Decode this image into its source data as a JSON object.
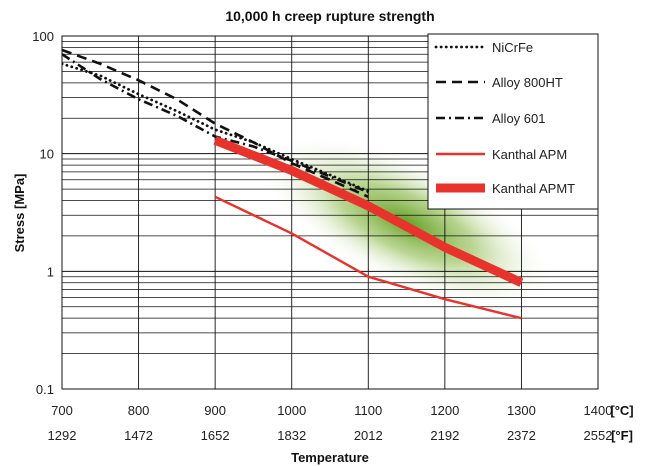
{
  "chart_data": {
    "type": "line",
    "title": "10,000 h creep rupture strength",
    "xlabel": "Temperature",
    "ylabel": "Stress [MPa]",
    "x_unit_primary": "[°C]",
    "x_unit_secondary": "[°F]",
    "x_scale": "linear",
    "y_scale": "log",
    "xlim": [
      700,
      1400
    ],
    "ylim": [
      0.1,
      100
    ],
    "x_ticks": [
      "700",
      "800",
      "900",
      "1000",
      "1100",
      "1200",
      "1300",
      "1400"
    ],
    "x_ticks_f": [
      "1292",
      "1472",
      "1652",
      "1832",
      "2012",
      "2192",
      "2372",
      "2552"
    ],
    "y_ticks": [
      "0.1",
      "1",
      "10",
      "100"
    ],
    "grid": true,
    "legend_position": "top-right",
    "colors": {
      "kanthal": "#e8332c",
      "alloys": "#111111",
      "zone": "#6fa126"
    },
    "series": [
      {
        "name": "NiCrFe",
        "style": "dotted",
        "color": "#111111",
        "points": [
          [
            700,
            58
          ],
          [
            750,
            46
          ],
          [
            800,
            32
          ],
          [
            850,
            23
          ],
          [
            900,
            16
          ],
          [
            950,
            12.5
          ],
          [
            1000,
            9
          ],
          [
            1050,
            6.6
          ],
          [
            1100,
            4.8
          ]
        ]
      },
      {
        "name": "Alloy 800HT",
        "style": "dashed",
        "color": "#111111",
        "points": [
          [
            700,
            76
          ],
          [
            750,
            58
          ],
          [
            800,
            42
          ],
          [
            850,
            29
          ],
          [
            900,
            18
          ],
          [
            950,
            12.5
          ],
          [
            1000,
            8.3
          ],
          [
            1050,
            6.0
          ],
          [
            1100,
            4.3
          ]
        ]
      },
      {
        "name": "Alloy 601",
        "style": "dashdot",
        "color": "#111111",
        "points": [
          [
            700,
            70
          ],
          [
            750,
            43
          ],
          [
            800,
            29
          ],
          [
            850,
            21
          ],
          [
            900,
            14
          ],
          [
            950,
            11.5
          ],
          [
            1000,
            8.7
          ],
          [
            1050,
            6.4
          ],
          [
            1100,
            4.7
          ]
        ]
      },
      {
        "name": "Kanthal APM",
        "style": "solid",
        "color": "#e8332c",
        "points": [
          [
            900,
            4.3
          ],
          [
            1000,
            2.1
          ],
          [
            1100,
            0.9
          ],
          [
            1200,
            0.58
          ],
          [
            1300,
            0.4
          ]
        ]
      },
      {
        "name": "Kanthal APMT",
        "style": "thick",
        "color": "#e8332c",
        "points": [
          [
            900,
            13
          ],
          [
            1000,
            7.2
          ],
          [
            1100,
            3.6
          ],
          [
            1200,
            1.6
          ],
          [
            1300,
            0.8
          ]
        ]
      }
    ]
  }
}
